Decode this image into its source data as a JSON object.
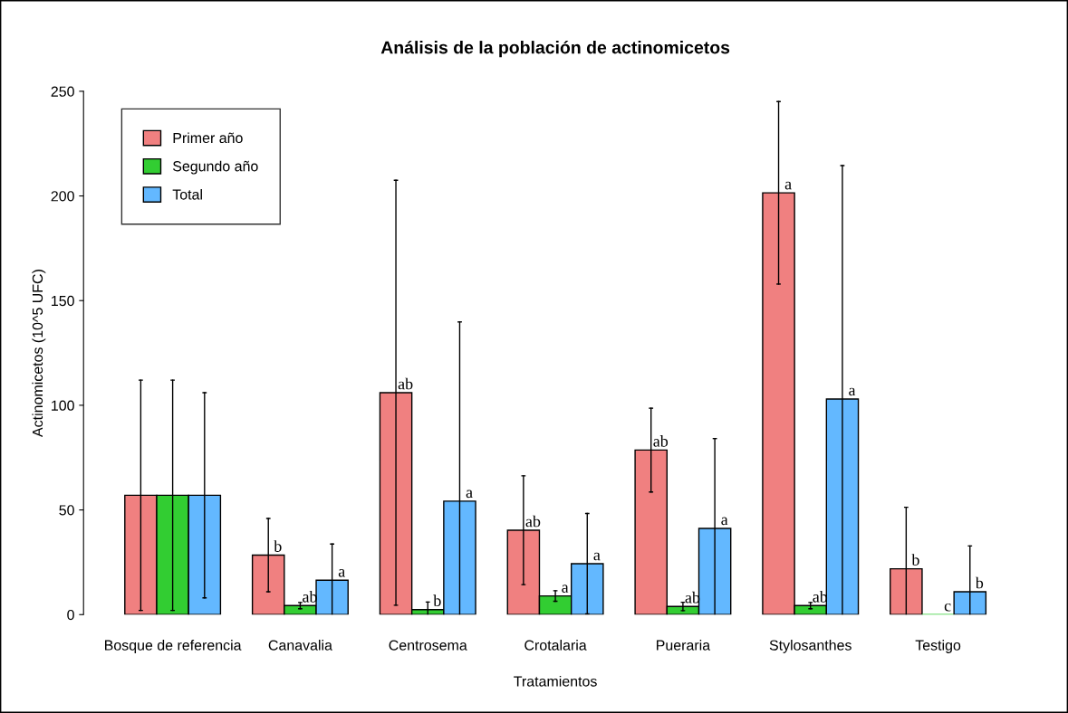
{
  "chart_data": {
    "type": "bar",
    "title": "Análisis de la población de actinomicetos",
    "xlabel": "Tratamientos",
    "ylabel": "Actinomicetos (10^5 UFC)",
    "categories": [
      "Bosque de referencia",
      "Canavalia",
      "Centrosema",
      "Crotalaria",
      "Pueraria",
      "Stylosanthes",
      "Testigo"
    ],
    "series": [
      {
        "name": "Primer año",
        "color": "#f08080",
        "values": [
          57,
          28.4,
          106,
          40.3,
          78.6,
          201.5,
          21.9
        ],
        "errors": [
          55,
          17.5,
          101.5,
          26,
          20,
          43.6,
          [
            0,
            51.3
          ]
        ],
        "value_labels": [
          null,
          "b",
          "ab",
          "ab",
          "ab",
          "a",
          "b"
        ]
      },
      {
        "name": "Segundo año",
        "color": "#32cd32",
        "values": [
          57,
          4.3,
          2.4,
          8.9,
          3.9,
          4.3,
          0
        ],
        "errors": [
          55,
          1.5,
          [
            0,
            6
          ],
          2.5,
          2,
          1.5,
          null
        ],
        "value_labels": [
          null,
          "ab",
          "b",
          "a",
          "ab",
          "ab",
          "c"
        ]
      },
      {
        "name": "Total",
        "color": "#63b8ff",
        "values": [
          57,
          16.4,
          54.2,
          24.3,
          41.2,
          103,
          10.9
        ],
        "errors": [
          49,
          [
            0,
            33.7
          ],
          [
            0,
            139.8
          ],
          24,
          [
            0,
            84.1
          ],
          [
            0,
            214.5
          ],
          [
            0,
            32.8
          ]
        ],
        "value_labels": [
          null,
          "a",
          "a",
          "a",
          "a",
          "a",
          "b"
        ]
      }
    ],
    "ylim": [
      0,
      250
    ],
    "yticks": [
      0,
      50,
      100,
      150,
      200,
      250
    ],
    "grid": false,
    "legend": "top left"
  }
}
